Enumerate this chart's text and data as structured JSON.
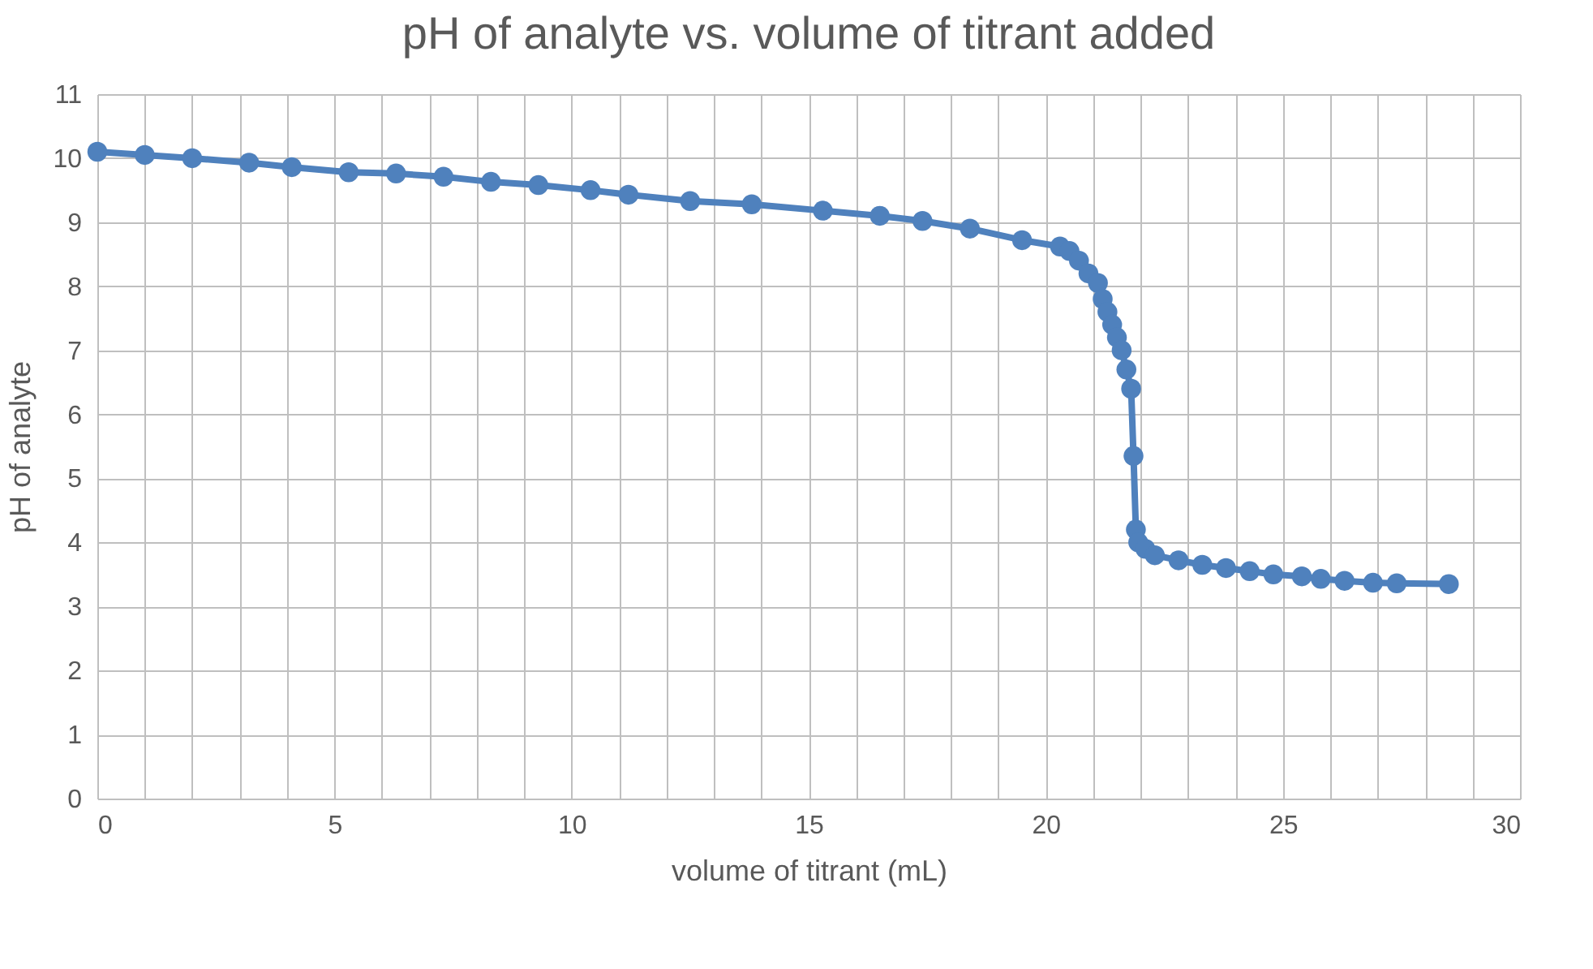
{
  "chart_data": {
    "type": "line",
    "title": "pH of analyte vs. volume of titrant added",
    "xlabel": "volume of titrant (mL)",
    "ylabel": "pH of analyte",
    "marker": "circle",
    "grid": true,
    "x": [
      0,
      1.0,
      2.0,
      3.2,
      4.1,
      5.3,
      6.3,
      7.3,
      8.3,
      9.3,
      10.4,
      11.2,
      12.5,
      13.8,
      15.3,
      16.5,
      17.4,
      18.4,
      19.5,
      20.3,
      20.5,
      20.7,
      20.9,
      21.1,
      21.2,
      21.3,
      21.4,
      21.5,
      21.6,
      21.7,
      21.8,
      21.85,
      21.9,
      21.95,
      22.1,
      22.3,
      22.8,
      23.3,
      23.8,
      24.3,
      24.8,
      25.4,
      25.8,
      26.3,
      26.9,
      27.4,
      28.5
    ],
    "series": [
      {
        "color": "#4f81bd",
        "values": [
          10.1,
          10.05,
          10.0,
          9.93,
          9.86,
          9.78,
          9.76,
          9.71,
          9.63,
          9.58,
          9.5,
          9.43,
          9.33,
          9.28,
          9.18,
          9.1,
          9.02,
          8.9,
          8.72,
          8.62,
          8.55,
          8.4,
          8.2,
          8.05,
          7.8,
          7.6,
          7.4,
          7.2,
          7.0,
          6.7,
          6.4,
          5.35,
          4.2,
          4.0,
          3.9,
          3.8,
          3.72,
          3.65,
          3.6,
          3.55,
          3.5,
          3.47,
          3.43,
          3.4,
          3.37,
          3.36,
          3.35
        ]
      }
    ],
    "xlim": [
      0,
      30
    ],
    "ylim": [
      0,
      11
    ],
    "xticks": [
      0,
      {
        "value": 1,
        "label": null
      },
      {
        "value": 2,
        "label": null
      },
      {
        "value": 3,
        "label": null
      },
      {
        "value": 4,
        "label": null
      },
      5,
      {
        "value": 6,
        "label": null
      },
      {
        "value": 7,
        "label": null
      },
      {
        "value": 8,
        "label": null
      },
      {
        "value": 9,
        "label": null
      },
      10,
      {
        "value": 11,
        "label": null
      },
      {
        "value": 12,
        "label": null
      },
      {
        "value": 13,
        "label": null
      },
      {
        "value": 14,
        "label": null
      },
      15,
      {
        "value": 16,
        "label": null
      },
      {
        "value": 17,
        "label": null
      },
      {
        "value": 18,
        "label": null
      },
      {
        "value": 19,
        "label": null
      },
      20,
      {
        "value": 21,
        "label": null
      },
      {
        "value": 22,
        "label": null
      },
      {
        "value": 23,
        "label": null
      },
      {
        "value": 24,
        "label": null
      },
      25,
      {
        "value": 26,
        "label": null
      },
      {
        "value": 27,
        "label": null
      },
      {
        "value": 28,
        "label": null
      },
      {
        "value": 29,
        "label": null
      },
      30
    ],
    "yticks": [
      0,
      1,
      2,
      3,
      4,
      5,
      6,
      7,
      8,
      9,
      10,
      11
    ]
  }
}
